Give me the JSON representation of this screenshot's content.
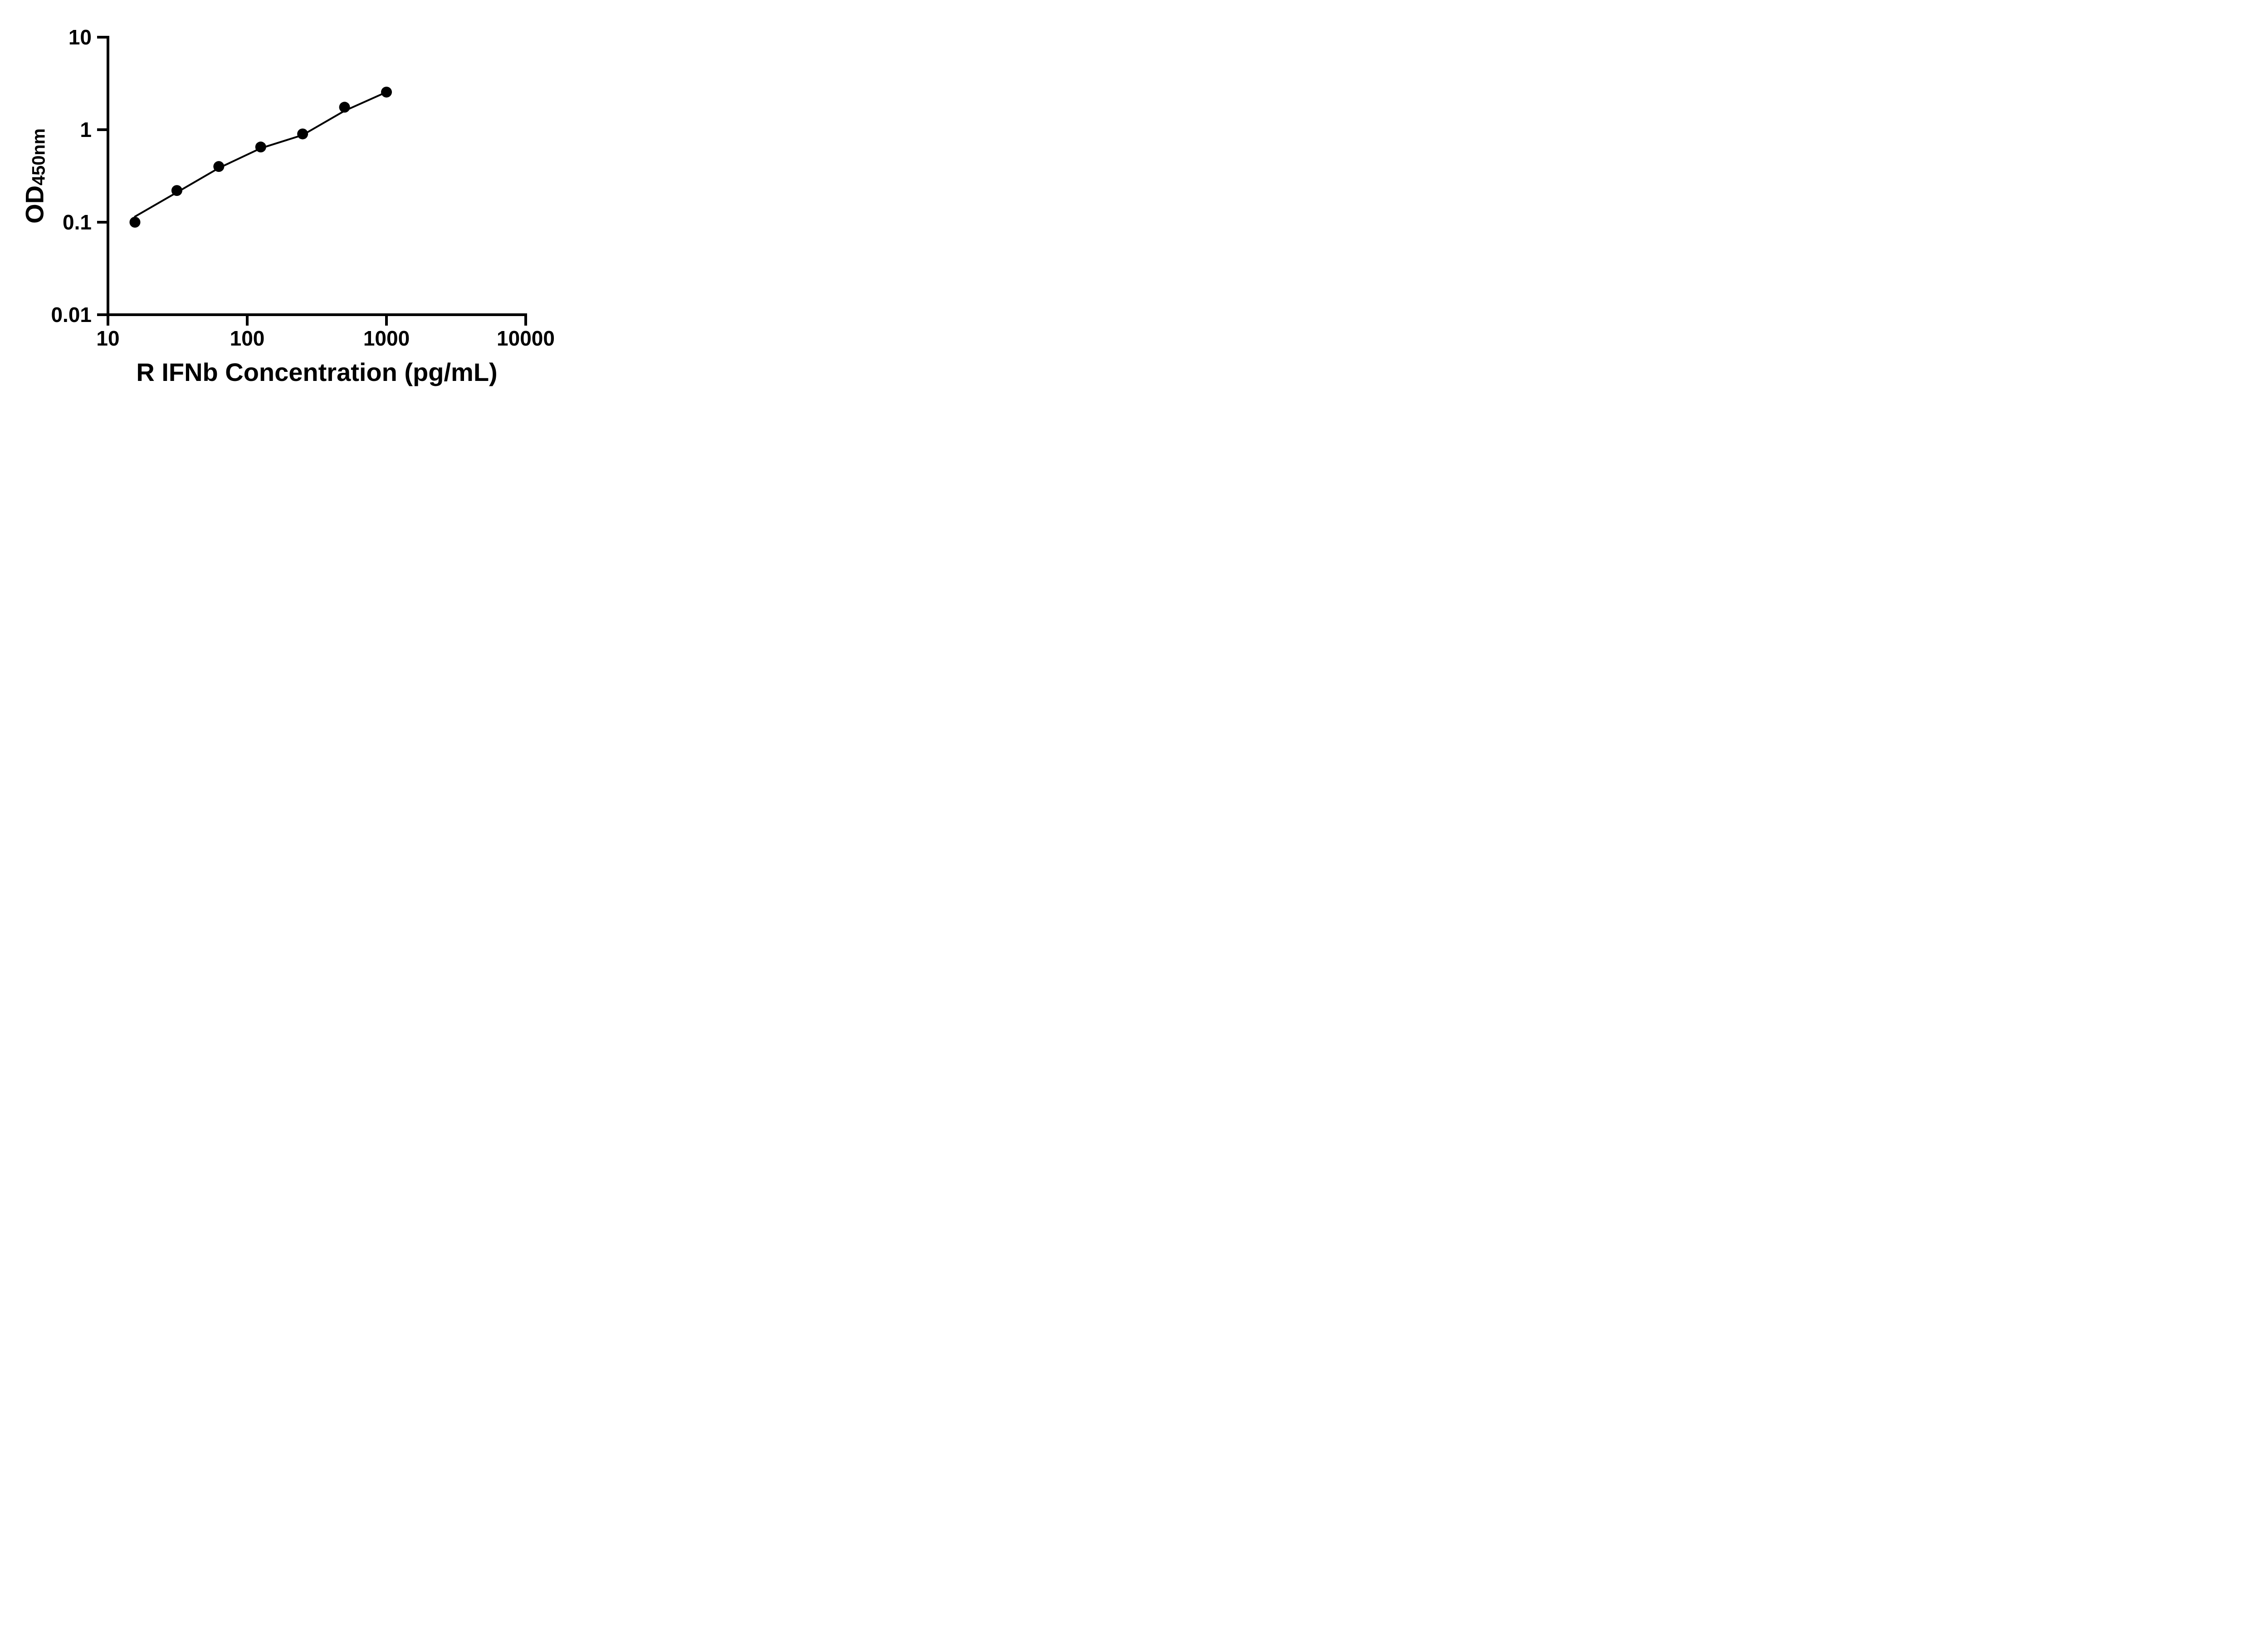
{
  "page": {
    "background": "#ffffff"
  },
  "chart_data": {
    "type": "scatter",
    "xlabel": "R IFNb Concentration (pg/mL)",
    "ylabel_main": "OD",
    "ylabel_sub": "450nm",
    "x_scale": "log",
    "y_scale": "log",
    "xlim": [
      10,
      10000
    ],
    "ylim": [
      0.01,
      10
    ],
    "x_ticks": [
      10,
      100,
      1000,
      10000
    ],
    "x_tick_labels": [
      "10",
      "100",
      "1000",
      "10000"
    ],
    "y_ticks": [
      0.01,
      0.1,
      1,
      10
    ],
    "y_tick_labels": [
      "0.01",
      "0.1",
      "1",
      "10"
    ],
    "grid": false,
    "legend": false,
    "colors": {
      "axis": "#000000",
      "marker": "#000000",
      "line": "#000000",
      "background": "#ffffff"
    },
    "series": [
      {
        "name": "fit-line",
        "type": "line",
        "color": "#000000",
        "points": [
          [
            15.625,
            0.115
          ],
          [
            31.25,
            0.21
          ],
          [
            62.5,
            0.385
          ],
          [
            125,
            0.63
          ],
          [
            250,
            0.875
          ],
          [
            500,
            1.6
          ],
          [
            1000,
            2.55
          ]
        ]
      },
      {
        "name": "standard-points",
        "type": "scatter",
        "marker": "circle-filled",
        "color": "#000000",
        "points": [
          [
            15.625,
            0.1
          ],
          [
            31.25,
            0.22
          ],
          [
            62.5,
            0.4
          ],
          [
            125,
            0.65
          ],
          [
            250,
            0.9
          ],
          [
            500,
            1.75
          ],
          [
            1000,
            2.55
          ]
        ]
      }
    ]
  }
}
